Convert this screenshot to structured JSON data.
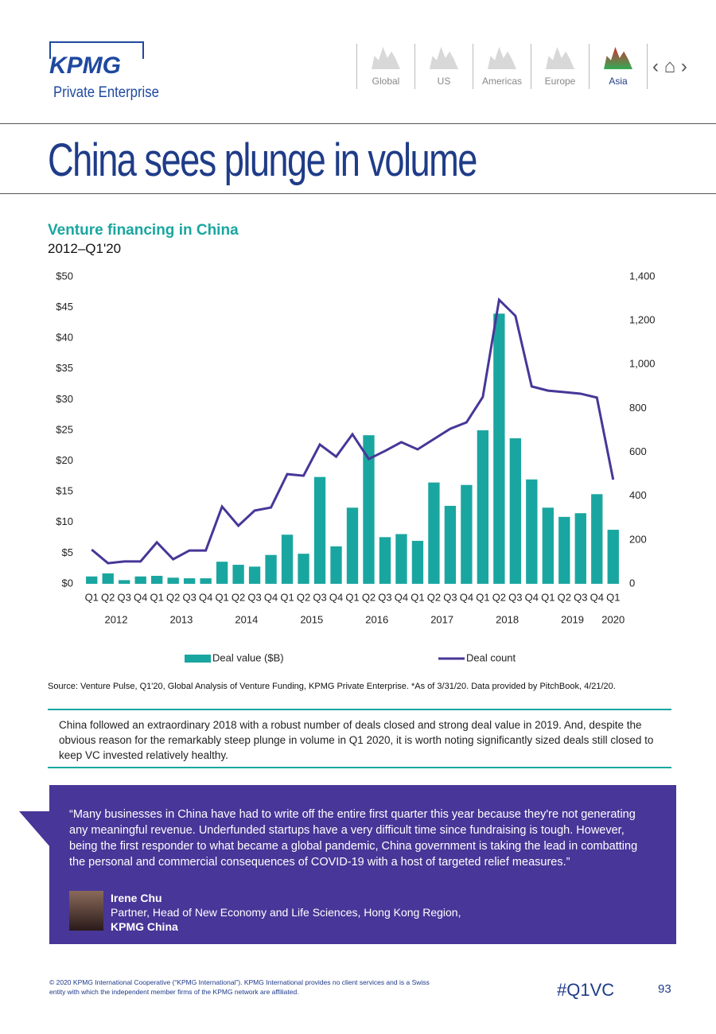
{
  "header": {
    "logo": "KPMG",
    "subtitle": "Private Enterprise"
  },
  "nav": [
    "Global",
    "US",
    "Americas",
    "Europe",
    "Asia"
  ],
  "page_title": "China sees plunge in volume",
  "chart_data": {
    "type": "bar",
    "title": "Venture financing in China",
    "subtitle": "2012–Q1'20",
    "categories": [
      "Q1",
      "Q2",
      "Q3",
      "Q4",
      "Q1",
      "Q2",
      "Q3",
      "Q4",
      "Q1",
      "Q2",
      "Q3",
      "Q4",
      "Q1",
      "Q2",
      "Q3",
      "Q4",
      "Q1",
      "Q2",
      "Q3",
      "Q4",
      "Q1",
      "Q2",
      "Q3",
      "Q4",
      "Q1",
      "Q2",
      "Q3",
      "Q4",
      "Q1",
      "Q2",
      "Q3",
      "Q4",
      "Q1"
    ],
    "years": [
      "2012",
      "2013",
      "2014",
      "2015",
      "2016",
      "2017",
      "2018",
      "2019",
      "2020"
    ],
    "series": [
      {
        "name": "Deal value ($B)",
        "type": "bar",
        "color": "#1aa6a0",
        "values": [
          1.2,
          1.7,
          0.6,
          1.2,
          1.3,
          1.0,
          0.9,
          0.9,
          3.6,
          3.1,
          2.8,
          4.7,
          8.0,
          4.9,
          17.4,
          6.1,
          12.4,
          24.2,
          7.6,
          8.1,
          7.0,
          16.5,
          12.7,
          16.1,
          25.0,
          44.0,
          23.7,
          17.0,
          12.4,
          10.9,
          11.5,
          14.6,
          8.8
        ]
      },
      {
        "name": "Deal count",
        "type": "line",
        "axis": "y2",
        "color": "#483698",
        "values": [
          156,
          94,
          102,
          102,
          189,
          112,
          152,
          152,
          352,
          265,
          334,
          348,
          500,
          493,
          635,
          580,
          682,
          569,
          606,
          646,
          613,
          660,
          707,
          736,
          852,
          1295,
          1222,
          900,
          881,
          874,
          867,
          849,
          475
        ]
      }
    ],
    "ylim": [
      0,
      50
    ],
    "yticks": [
      {
        "value": 0,
        "label": "$0"
      },
      {
        "value": 5,
        "label": "$5"
      },
      {
        "value": 10,
        "label": "$10"
      },
      {
        "value": 15,
        "label": "$15"
      },
      {
        "value": 20,
        "label": "$20"
      },
      {
        "value": 25,
        "label": "$25"
      },
      {
        "value": 30,
        "label": "$30"
      },
      {
        "value": 35,
        "label": "$35"
      },
      {
        "value": 40,
        "label": "$40"
      },
      {
        "value": 45,
        "label": "$45"
      },
      {
        "value": 50,
        "label": "$50"
      }
    ],
    "y2lim": [
      0,
      1400
    ],
    "y2ticks": [
      0,
      200,
      400,
      600,
      800,
      {
        "value": 1000,
        "label": "1,000"
      },
      {
        "value": 1200,
        "label": "1,200"
      },
      {
        "value": 1400,
        "label": "1,400"
      }
    ],
    "legend": "bottom"
  },
  "source": "Source: Venture Pulse, Q1'20, Global Analysis of Venture Funding, KPMG Private Enterprise. *As of 3/31/20. Data provided by PitchBook, 4/21/20.",
  "commentary": "China followed an extraordinary 2018 with a robust number of deals closed and strong deal value in 2019. And, despite the obvious reason for the remarkably steep plunge in volume in Q1 2020, it is worth noting significantly sized deals still closed to keep VC invested relatively healthy.",
  "quote": {
    "text": "“Many businesses in China have had to write off the entire first quarter this year because they're not generating any meaningful revenue. Underfunded startups have a very difficult time since fundraising is tough. However, being the first responder to what became a global pandemic, China government is taking the lead in combatting the personal and commercial consequences of COVID-19 with a host of targeted relief measures.”",
    "name": "Irene Chu",
    "role": "Partner, Head of New Economy and Life Sciences, Hong Kong Region,",
    "company": "KPMG China"
  },
  "footer": {
    "copyright": "© 2020 KPMG International Cooperative (“KPMG International”). KPMG International provides no client services and is a Swiss entity with which the independent member firms of the KPMG network are affiliated.",
    "hashtag": "#Q1VC",
    "page": 93
  }
}
